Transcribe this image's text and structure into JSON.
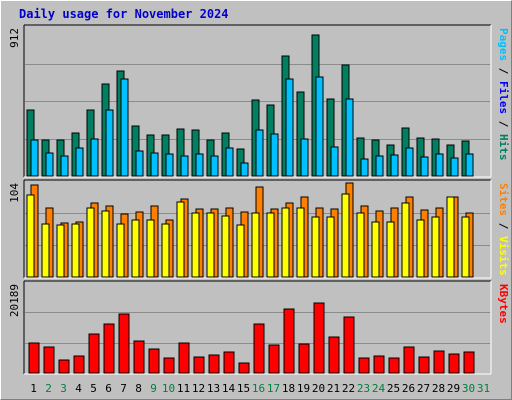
{
  "title": "Daily usage for November 2024",
  "colors": {
    "background": "#c0c0c0",
    "plot_bg": "#c0c0c0",
    "grid": "#8c8c8c",
    "pages": "#00c0ff",
    "files": "#008060",
    "hits": "#008060",
    "visits": "#ffff00",
    "sites": "#ff8000",
    "kbytes": "#ff0000",
    "weekend": "#008040",
    "weekday": "#000000",
    "title": "#0000cc"
  },
  "chart_data": [
    {
      "type": "bar",
      "panel": "hits",
      "ylabel_max": "912",
      "legend": [
        {
          "text": "Pages",
          "color": "#00c0ff"
        },
        {
          "text": " / ",
          "color": "#000000"
        },
        {
          "text": "Files",
          "color": "#0000ff"
        },
        {
          "text": " / ",
          "color": "#000000"
        },
        {
          "text": "Hits",
          "color": "#008060"
        }
      ],
      "categories": [
        "1",
        "2",
        "3",
        "4",
        "5",
        "6",
        "7",
        "8",
        "9",
        "10",
        "11",
        "12",
        "13",
        "14",
        "15",
        "16",
        "17",
        "18",
        "19",
        "20",
        "21",
        "22",
        "23",
        "24",
        "25",
        "26",
        "27",
        "28",
        "29",
        "30",
        "31"
      ],
      "ylim": [
        0,
        912
      ],
      "series": [
        {
          "name": "Hits",
          "values": [
            407,
            221,
            221,
            266,
            407,
            565,
            649,
            311,
            251,
            251,
            287,
            281,
            221,
            266,
            167,
            467,
            437,
            741,
            516,
            867,
            472,
            685,
            236,
            221,
            191,
            296,
            236,
            231,
            191,
            216,
            0
          ]
        },
        {
          "name": "Pages",
          "values": [
            221,
            140,
            126,
            171,
            231,
            407,
            600,
            151,
            140,
            136,
            126,
            136,
            126,
            171,
            80,
            281,
            256,
            600,
            231,
            612,
            176,
            472,
            105,
            126,
            131,
            171,
            115,
            136,
            110,
            136,
            0
          ]
        }
      ]
    },
    {
      "type": "bar",
      "panel": "visits",
      "ylabel_max": "104",
      "legend": [
        {
          "text": "Sites",
          "color": "#ff8000"
        },
        {
          "text": " / ",
          "color": "#000000"
        },
        {
          "text": "Visits",
          "color": "#ffff00"
        }
      ],
      "categories": [
        "1",
        "2",
        "3",
        "4",
        "5",
        "6",
        "7",
        "8",
        "9",
        "10",
        "11",
        "12",
        "13",
        "14",
        "15",
        "16",
        "17",
        "18",
        "19",
        "20",
        "21",
        "22",
        "23",
        "24",
        "25",
        "26",
        "27",
        "28",
        "29",
        "30",
        "31"
      ],
      "ylim": [
        0,
        104
      ],
      "series": [
        {
          "name": "Visits",
          "values": [
            91,
            59,
            58,
            59,
            76,
            73,
            59,
            63,
            63,
            59,
            83,
            71,
            71,
            68,
            58,
            71,
            71,
            76,
            76,
            66,
            66,
            92,
            71,
            61,
            61,
            82,
            63,
            66,
            88,
            66,
            0
          ]
        },
        {
          "name": "Sites",
          "values": [
            102,
            76,
            60,
            61,
            82,
            79,
            70,
            72,
            79,
            63,
            86,
            75,
            75,
            76,
            72,
            100,
            75,
            82,
            88,
            76,
            75,
            104,
            79,
            73,
            76,
            88,
            74,
            76,
            89,
            71,
            0
          ]
        }
      ]
    },
    {
      "type": "bar",
      "panel": "kbytes",
      "ylabel_max": "20189",
      "legend": [
        {
          "text": "KBytes",
          "color": "#ff0000"
        }
      ],
      "categories": [
        "1",
        "2",
        "3",
        "4",
        "5",
        "6",
        "7",
        "8",
        "9",
        "10",
        "11",
        "12",
        "13",
        "14",
        "15",
        "16",
        "17",
        "18",
        "19",
        "20",
        "21",
        "22",
        "23",
        "24",
        "25",
        "26",
        "27",
        "28",
        "29",
        "30",
        "31"
      ],
      "ylim": [
        0,
        20189
      ],
      "series": [
        {
          "name": "KBytes",
          "values": [
            6700,
            6000,
            2900,
            3900,
            8900,
            11100,
            13300,
            7200,
            5400,
            3400,
            6800,
            3700,
            4000,
            4800,
            2300,
            11200,
            6300,
            14600,
            6500,
            15900,
            8200,
            12700,
            3500,
            3900,
            3400,
            5900,
            3600,
            4900,
            4400,
            4800,
            0
          ]
        }
      ]
    }
  ],
  "days": [
    "1",
    "2",
    "3",
    "4",
    "5",
    "6",
    "7",
    "8",
    "9",
    "10",
    "11",
    "12",
    "13",
    "14",
    "15",
    "16",
    "17",
    "18",
    "19",
    "20",
    "21",
    "22",
    "23",
    "24",
    "25",
    "26",
    "27",
    "28",
    "29",
    "30",
    "31"
  ],
  "weekend_days": [
    2,
    3,
    9,
    10,
    16,
    17,
    23,
    24,
    30,
    31
  ]
}
